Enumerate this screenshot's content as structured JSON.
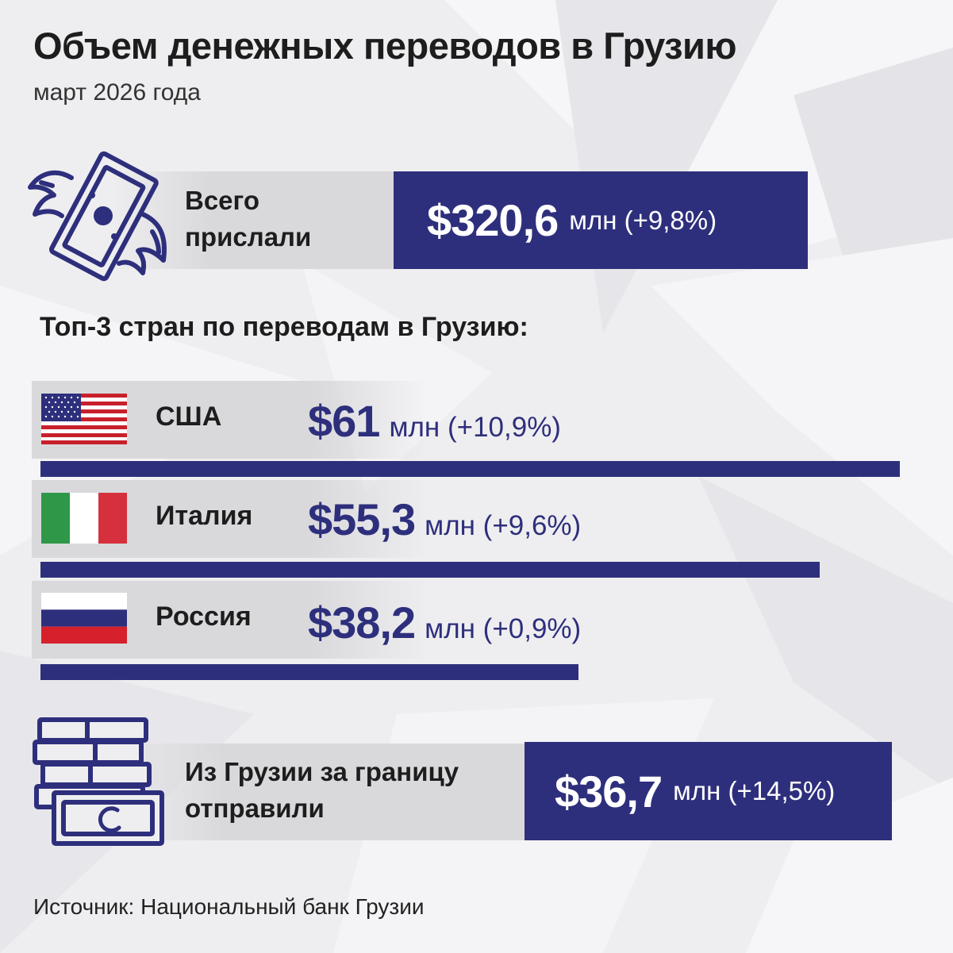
{
  "header": {
    "title": "Объем денежных переводов в Грузию",
    "subtitle": "март 2026 года"
  },
  "total_received": {
    "label_line1": "Всего",
    "label_line2": "прислали",
    "value": "$320,6",
    "unit_change": "млн (+9,8%)"
  },
  "top3": {
    "title": "Топ-3 стран по переводам в Грузию:"
  },
  "countries": [
    {
      "name": "США",
      "value": "$61",
      "unit_change": "млн (+10,9%)"
    },
    {
      "name": "Италия",
      "value": "$55,3",
      "unit_change": "млн (+9,6%)"
    },
    {
      "name": "Россия",
      "value": "$38,2",
      "unit_change": "млн (+0,9%)"
    }
  ],
  "sent_abroad": {
    "label_line1": "Из Грузии за границу",
    "label_line2": "отправили",
    "value": "$36,7",
    "unit_change": "млн (+14,5%)"
  },
  "source": "Источник: Национальный банк Грузии",
  "colors": {
    "accent": "#2e2f7c",
    "background": "#eeeef0",
    "strip": "#d9d9dc"
  },
  "chart_data": {
    "type": "bar",
    "orientation": "horizontal",
    "categories": [
      "США",
      "Италия",
      "Россия"
    ],
    "values": [
      61,
      55.3,
      38.2
    ],
    "change_pct": [
      10.9,
      9.6,
      0.9
    ],
    "unit": "млн",
    "totals": {
      "received": 320.6,
      "received_change_pct": 9.8,
      "sent": 36.7,
      "sent_change_pct": 14.5
    }
  }
}
